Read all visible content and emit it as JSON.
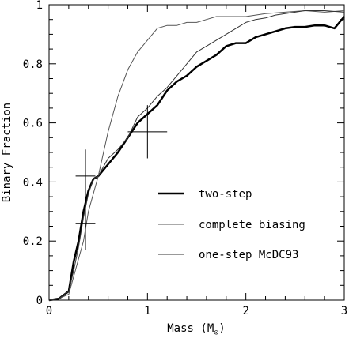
{
  "chart_data": {
    "type": "line",
    "xlabel": "Mass (M",
    "xlabel_sub": "⊙",
    "xlabel_close": ")",
    "ylabel": "Binary Fraction",
    "xlim": [
      0,
      3
    ],
    "ylim": [
      0,
      1
    ],
    "x_ticks": [
      0,
      1,
      2,
      3
    ],
    "x_tick_labels": [
      "0",
      "1",
      "2",
      "3"
    ],
    "y_ticks": [
      0,
      0.2,
      0.4,
      0.6,
      0.8,
      1
    ],
    "y_tick_labels": [
      "0",
      "0.2",
      "0.4",
      "0.6",
      "0.8",
      "1"
    ],
    "grid": false,
    "legend_position": "center-right",
    "series": [
      {
        "name": "two-step",
        "color": "#000000",
        "weight": "thick",
        "x": [
          0.0,
          0.1,
          0.2,
          0.25,
          0.3,
          0.35,
          0.4,
          0.45,
          0.5,
          0.55,
          0.6,
          0.7,
          0.8,
          0.9,
          1.0,
          1.1,
          1.2,
          1.3,
          1.4,
          1.5,
          1.6,
          1.7,
          1.8,
          1.9,
          2.0,
          2.1,
          2.2,
          2.3,
          2.4,
          2.5,
          2.6,
          2.7,
          2.8,
          2.9,
          2.95,
          3.0
        ],
        "y": [
          0.0,
          0.005,
          0.03,
          0.13,
          0.2,
          0.3,
          0.37,
          0.41,
          0.42,
          0.44,
          0.46,
          0.5,
          0.55,
          0.6,
          0.63,
          0.66,
          0.71,
          0.74,
          0.76,
          0.79,
          0.81,
          0.83,
          0.86,
          0.87,
          0.87,
          0.89,
          0.9,
          0.91,
          0.92,
          0.925,
          0.925,
          0.93,
          0.93,
          0.92,
          0.94,
          0.96
        ]
      },
      {
        "name": "complete biasing",
        "color": "#555555",
        "weight": "thin",
        "x": [
          0.0,
          0.1,
          0.2,
          0.25,
          0.3,
          0.35,
          0.4,
          0.45,
          0.5,
          0.6,
          0.7,
          0.8,
          0.9,
          1.0,
          1.1,
          1.2,
          1.3,
          1.4,
          1.5,
          1.6,
          1.7,
          1.8,
          1.9,
          2.0,
          2.2,
          2.4,
          2.6,
          2.8,
          3.0
        ],
        "y": [
          0.0,
          0.005,
          0.02,
          0.08,
          0.14,
          0.2,
          0.3,
          0.36,
          0.42,
          0.57,
          0.69,
          0.78,
          0.84,
          0.88,
          0.92,
          0.93,
          0.93,
          0.94,
          0.94,
          0.95,
          0.96,
          0.96,
          0.96,
          0.96,
          0.97,
          0.975,
          0.98,
          0.975,
          0.98
        ]
      },
      {
        "name": "one-step McDC93",
        "color": "#333333",
        "weight": "thin",
        "x": [
          0.0,
          0.1,
          0.2,
          0.25,
          0.3,
          0.35,
          0.4,
          0.45,
          0.5,
          0.6,
          0.7,
          0.8,
          0.9,
          1.0,
          1.1,
          1.2,
          1.3,
          1.4,
          1.5,
          1.6,
          1.7,
          1.8,
          1.9,
          2.0,
          2.1,
          2.2,
          2.3,
          2.4,
          2.5,
          2.6,
          2.8,
          3.0
        ],
        "y": [
          0.0,
          0.005,
          0.03,
          0.1,
          0.18,
          0.28,
          0.36,
          0.41,
          0.42,
          0.48,
          0.51,
          0.55,
          0.62,
          0.65,
          0.69,
          0.72,
          0.76,
          0.8,
          0.84,
          0.86,
          0.88,
          0.9,
          0.92,
          0.94,
          0.95,
          0.955,
          0.965,
          0.97,
          0.975,
          0.98,
          0.98,
          0.975
        ]
      }
    ],
    "error_points": [
      {
        "x": 0.37,
        "y": 0.42,
        "xerr": 0.1,
        "yerr": 0.09
      },
      {
        "x": 0.37,
        "y": 0.26,
        "xerr": 0.1,
        "yerr": 0.09
      },
      {
        "x": 1.0,
        "y": 0.57,
        "xerr": 0.2,
        "yerr": 0.09
      }
    ]
  }
}
